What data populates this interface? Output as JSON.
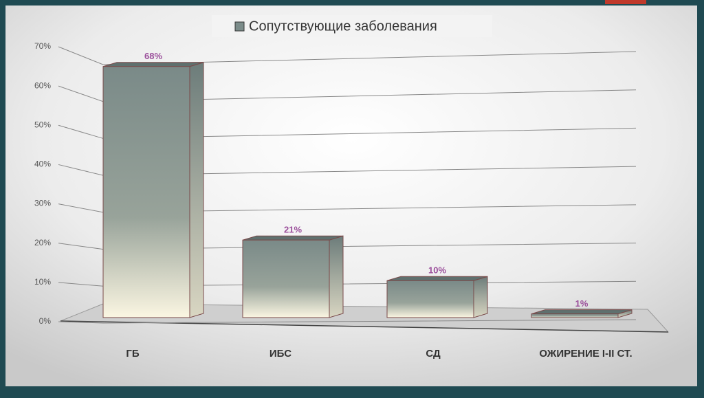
{
  "chart_data": {
    "type": "bar3d",
    "categories": [
      "ГБ",
      "ИБС",
      "СД",
      "ОЖИРЕНИЕ I-II СТ."
    ],
    "series": [
      {
        "name": "Сопутствующие заболевания",
        "color": "#7b8c8a",
        "values": [
          68,
          21,
          10,
          1
        ],
        "value_labels": [
          "68%",
          "21%",
          "10%",
          "1%"
        ]
      }
    ],
    "ylim": [
      0,
      70
    ],
    "yticks": [
      {
        "value": 0,
        "label": "0%"
      },
      {
        "value": 10,
        "label": "10%"
      },
      {
        "value": 20,
        "label": "20%"
      },
      {
        "value": 30,
        "label": "30%"
      },
      {
        "value": 40,
        "label": "40%"
      },
      {
        "value": 50,
        "label": "50%"
      },
      {
        "value": 60,
        "label": "60%"
      },
      {
        "value": 70,
        "label": "70%"
      }
    ],
    "grid": true
  }
}
